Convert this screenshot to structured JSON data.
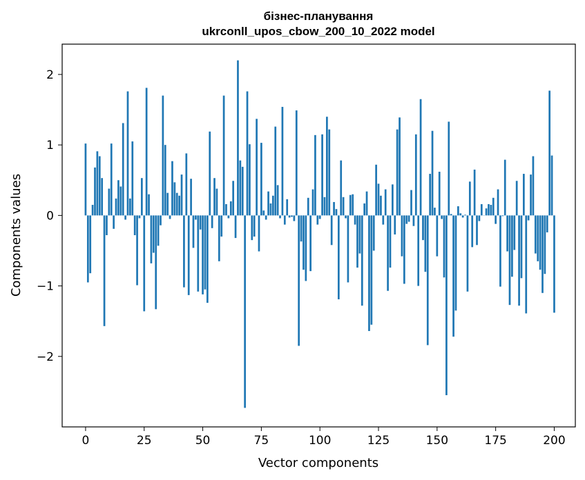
{
  "chart_data": {
    "type": "bar",
    "title_line1": "бізнес-планування",
    "title_line2": "ukrconll_upos_cbow_200_10_2022 model",
    "xlabel": "Vector components",
    "ylabel": "Components values",
    "xlim": [
      -10,
      209
    ],
    "ylim": [
      -3.0,
      2.43
    ],
    "x_ticks": [
      0,
      25,
      50,
      75,
      100,
      125,
      150,
      175,
      200
    ],
    "y_ticks": [
      -2,
      -1,
      0,
      1,
      2
    ],
    "y_tick_labels": [
      "−2",
      "−1",
      "0",
      "1",
      "2"
    ],
    "bar_color": "#1f77b4",
    "grid": false,
    "values": [
      1.02,
      -0.95,
      -0.82,
      0.15,
      0.68,
      0.91,
      0.84,
      0.53,
      -1.57,
      -0.28,
      0.38,
      1.02,
      -0.19,
      0.24,
      0.5,
      0.41,
      1.31,
      -0.06,
      1.76,
      0.24,
      1.05,
      -0.28,
      -0.99,
      -0.04,
      0.53,
      -1.36,
      1.81,
      0.3,
      -0.68,
      -0.53,
      -1.33,
      -0.43,
      -0.14,
      1.7,
      1.0,
      0.32,
      -0.05,
      0.77,
      0.47,
      0.32,
      0.28,
      0.58,
      -1.02,
      0.88,
      -1.13,
      0.52,
      -0.46,
      -0.06,
      -1.08,
      -0.2,
      -1.12,
      -1.05,
      -1.24,
      1.19,
      -0.18,
      0.53,
      0.38,
      -0.65,
      -0.3,
      1.7,
      0.16,
      -0.04,
      0.2,
      0.49,
      -0.32,
      2.2,
      0.78,
      0.69,
      -2.73,
      1.76,
      1.01,
      -0.35,
      -0.3,
      1.37,
      -0.51,
      1.03,
      0.07,
      -0.06,
      0.34,
      0.17,
      0.28,
      1.26,
      0.43,
      -0.04,
      1.54,
      -0.13,
      0.23,
      -0.03,
      -0.02,
      -0.08,
      1.49,
      -1.85,
      -0.37,
      -0.77,
      -0.93,
      0.25,
      -0.79,
      0.37,
      1.14,
      -0.13,
      -0.05,
      1.15,
      0.26,
      1.4,
      1.22,
      -0.42,
      0.19,
      0.09,
      -1.19,
      0.78,
      0.26,
      -0.04,
      -0.95,
      0.29,
      0.3,
      -0.13,
      -0.74,
      -0.54,
      -1.28,
      0.17,
      0.34,
      -1.64,
      -1.55,
      -0.5,
      0.72,
      0.45,
      0.28,
      -0.13,
      0.37,
      -1.07,
      -0.74,
      0.44,
      -0.27,
      1.22,
      1.39,
      -0.58,
      -0.97,
      -0.12,
      -0.09,
      0.36,
      -0.15,
      1.15,
      -1.0,
      1.65,
      -0.35,
      -0.8,
      -1.84,
      0.59,
      1.2,
      0.11,
      -0.58,
      0.62,
      -0.05,
      -0.88,
      -2.55,
      1.33,
      0.02,
      -1.72,
      -1.35,
      0.13,
      0.03,
      -0.03,
      0.01,
      -1.08,
      0.48,
      -0.45,
      0.65,
      -0.42,
      -0.08,
      0.16,
      0.0,
      0.1,
      0.16,
      0.15,
      0.25,
      -0.12,
      0.37,
      -1.01,
      -0.01,
      0.79,
      -0.51,
      -1.27,
      -0.87,
      -0.49,
      0.49,
      -1.28,
      -0.89,
      0.59,
      -1.39,
      -0.07,
      0.58,
      0.84,
      -0.54,
      -0.65,
      -0.77,
      -1.1,
      -0.83,
      -0.24,
      1.77,
      0.85,
      -1.38
    ]
  }
}
